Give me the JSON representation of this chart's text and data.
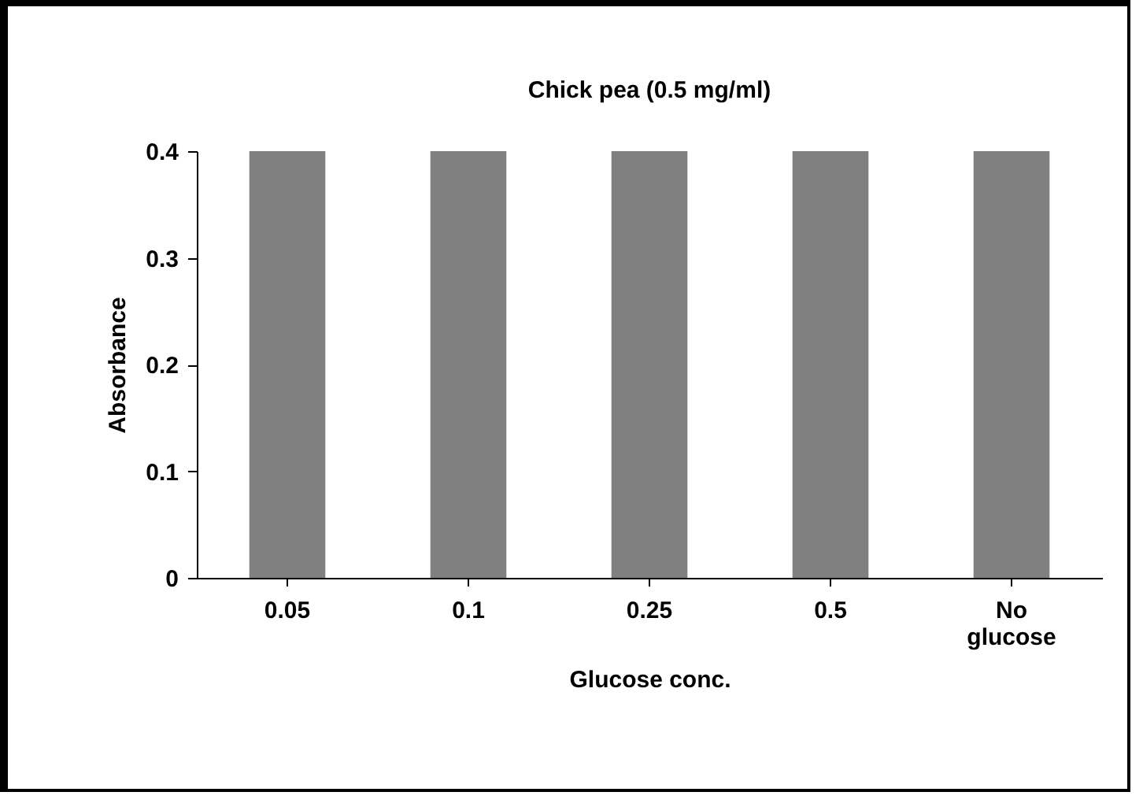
{
  "chart_data": {
    "type": "bar",
    "title": "Chick pea (0.5 mg/ml)",
    "xlabel": "Glucose conc.",
    "ylabel": "Absorbance",
    "categories": [
      "0.05",
      "0.1",
      "0.25",
      "0.5",
      "No glucose"
    ],
    "values": [
      0.4,
      0.4,
      0.4,
      0.4,
      0.4
    ],
    "color": "#808080",
    "ylim": [
      0,
      0.4
    ],
    "yticks": [
      0,
      0.1,
      0.2,
      0.3,
      0.4
    ]
  }
}
